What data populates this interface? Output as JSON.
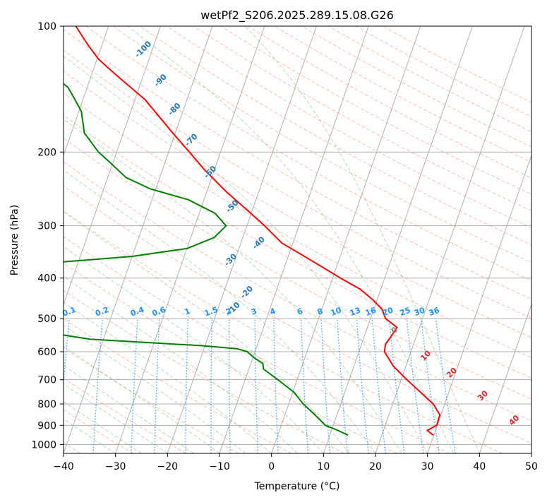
{
  "chart_data": {
    "type": "line",
    "diagram": "skew-T log-P",
    "title": "wetPf2_S206.2025.289.15.08.G26",
    "xlabel": "Temperature (°C)",
    "ylabel": "Pressure (hPa)",
    "xlim": [
      -40,
      50
    ],
    "ylim": [
      1050,
      100
    ],
    "x_ticks": [
      -40,
      -30,
      -20,
      -10,
      0,
      10,
      20,
      30,
      40,
      50
    ],
    "x_tick_labels": [
      "−40",
      "−30",
      "−20",
      "−10",
      "0",
      "10",
      "20",
      "30",
      "40",
      "50"
    ],
    "y_ticks": [
      100,
      200,
      300,
      400,
      500,
      600,
      700,
      800,
      900,
      1000
    ],
    "y_tick_labels": [
      "100",
      "200",
      "300",
      "400",
      "500",
      "600",
      "700",
      "800",
      "900",
      "1000"
    ],
    "grid": true,
    "series": [
      {
        "name": "Temperature",
        "color": "#ff0000",
        "points": [
          [
            950,
            29.9
          ],
          [
            925,
            28.4
          ],
          [
            900,
            29.9
          ],
          [
            850,
            29.8
          ],
          [
            800,
            27.8
          ],
          [
            700,
            21.1
          ],
          [
            650,
            17.6
          ],
          [
            600,
            14.9
          ],
          [
            575,
            14.6
          ],
          [
            550,
            15.2
          ],
          [
            525,
            15.7
          ],
          [
            500,
            12.9
          ],
          [
            475,
            11.6
          ],
          [
            450,
            9.1
          ],
          [
            425,
            6.0
          ],
          [
            400,
            1.5
          ],
          [
            375,
            -3.0
          ],
          [
            350,
            -7.9
          ],
          [
            330,
            -12.1
          ],
          [
            300,
            -16.6
          ],
          [
            280,
            -20.1
          ],
          [
            250,
            -26.0
          ],
          [
            220,
            -32.0
          ],
          [
            200,
            -36.0
          ],
          [
            180,
            -40.5
          ],
          [
            150,
            -48.0
          ],
          [
            130,
            -55.6
          ],
          [
            120,
            -59.7
          ],
          [
            110,
            -63.0
          ],
          [
            100,
            -66.3
          ]
        ]
      },
      {
        "name": "Dewpoint",
        "color": "#008000",
        "points": [
          [
            950,
            13.5
          ],
          [
            925,
            11.2
          ],
          [
            900,
            8.5
          ],
          [
            850,
            5.8
          ],
          [
            800,
            2.8
          ],
          [
            750,
            0.2
          ],
          [
            700,
            -3.7
          ],
          [
            660,
            -7.2
          ],
          [
            640,
            -7.7
          ],
          [
            620,
            -9.8
          ],
          [
            600,
            -11.5
          ],
          [
            590,
            -13.7
          ],
          [
            580,
            -21.0
          ],
          [
            570,
            -32.0
          ],
          [
            560,
            -42.6
          ],
          [
            520,
            -60.0
          ],
          [
            500,
            -65.5
          ],
          [
            480,
            -68.0
          ],
          [
            460,
            -70.5
          ],
          [
            430,
            -68.5
          ],
          [
            400,
            -60.5
          ],
          [
            370,
            -57.5
          ],
          [
            355,
            -40.0
          ],
          [
            340,
            -30.0
          ],
          [
            320,
            -25.5
          ],
          [
            300,
            -24.0
          ],
          [
            280,
            -27.0
          ],
          [
            260,
            -33.0
          ],
          [
            245,
            -41.0
          ],
          [
            230,
            -46.5
          ],
          [
            210,
            -51.0
          ],
          [
            200,
            -53.5
          ],
          [
            180,
            -57.5
          ],
          [
            160,
            -59.5
          ],
          [
            150,
            -61.5
          ],
          [
            140,
            -63.7
          ],
          [
            120,
            -72.5
          ],
          [
            100,
            -84.5
          ]
        ]
      }
    ],
    "dry_adiabat_labels": [
      "-100",
      "-90",
      "-80",
      "-70",
      "-60",
      "-50",
      "-40",
      "-30",
      "-20",
      "-10"
    ],
    "mixing_ratio_labels": [
      "0.1",
      "0.2",
      "0.4",
      "0.6",
      "1",
      "1.5",
      "2",
      "3",
      "4",
      "6",
      "8",
      "10",
      "13",
      "16",
      "20",
      "25",
      "30",
      "36"
    ],
    "moist_adiabat_labels": [
      "0",
      "10",
      "20",
      "30",
      "40"
    ]
  }
}
